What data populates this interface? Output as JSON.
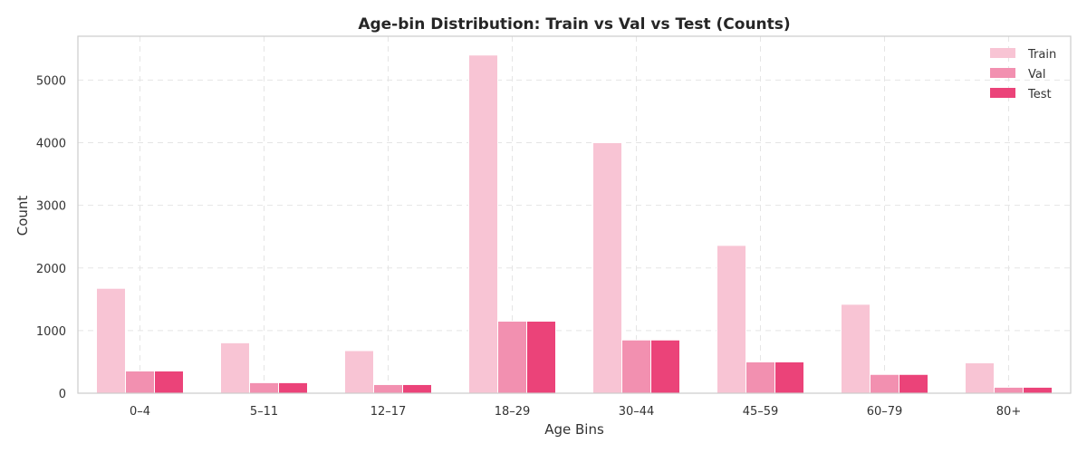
{
  "chart_data": {
    "type": "bar",
    "title": "Age-bin Distribution: Train vs Val vs Test (Counts)",
    "xlabel": "Age Bins",
    "ylabel": "Count",
    "categories": [
      "0–4",
      "5–11",
      "12–17",
      "18–29",
      "30–44",
      "45–59",
      "60–79",
      "80+"
    ],
    "series": [
      {
        "name": "Train",
        "color": "#f8c4d4",
        "values": [
          1675,
          805,
          680,
          5400,
          4000,
          2360,
          1420,
          485
        ]
      },
      {
        "name": "Val",
        "color": "#f290b0",
        "values": [
          355,
          168,
          138,
          1150,
          850,
          500,
          300,
          95
        ]
      },
      {
        "name": "Test",
        "color": "#eb4379",
        "values": [
          355,
          168,
          138,
          1150,
          850,
          500,
          300,
          95
        ]
      }
    ],
    "yticks": [
      0,
      1000,
      2000,
      3000,
      4000,
      5000
    ],
    "ylim": [
      0,
      5700
    ],
    "grid": true,
    "legend_position": "top-right"
  }
}
